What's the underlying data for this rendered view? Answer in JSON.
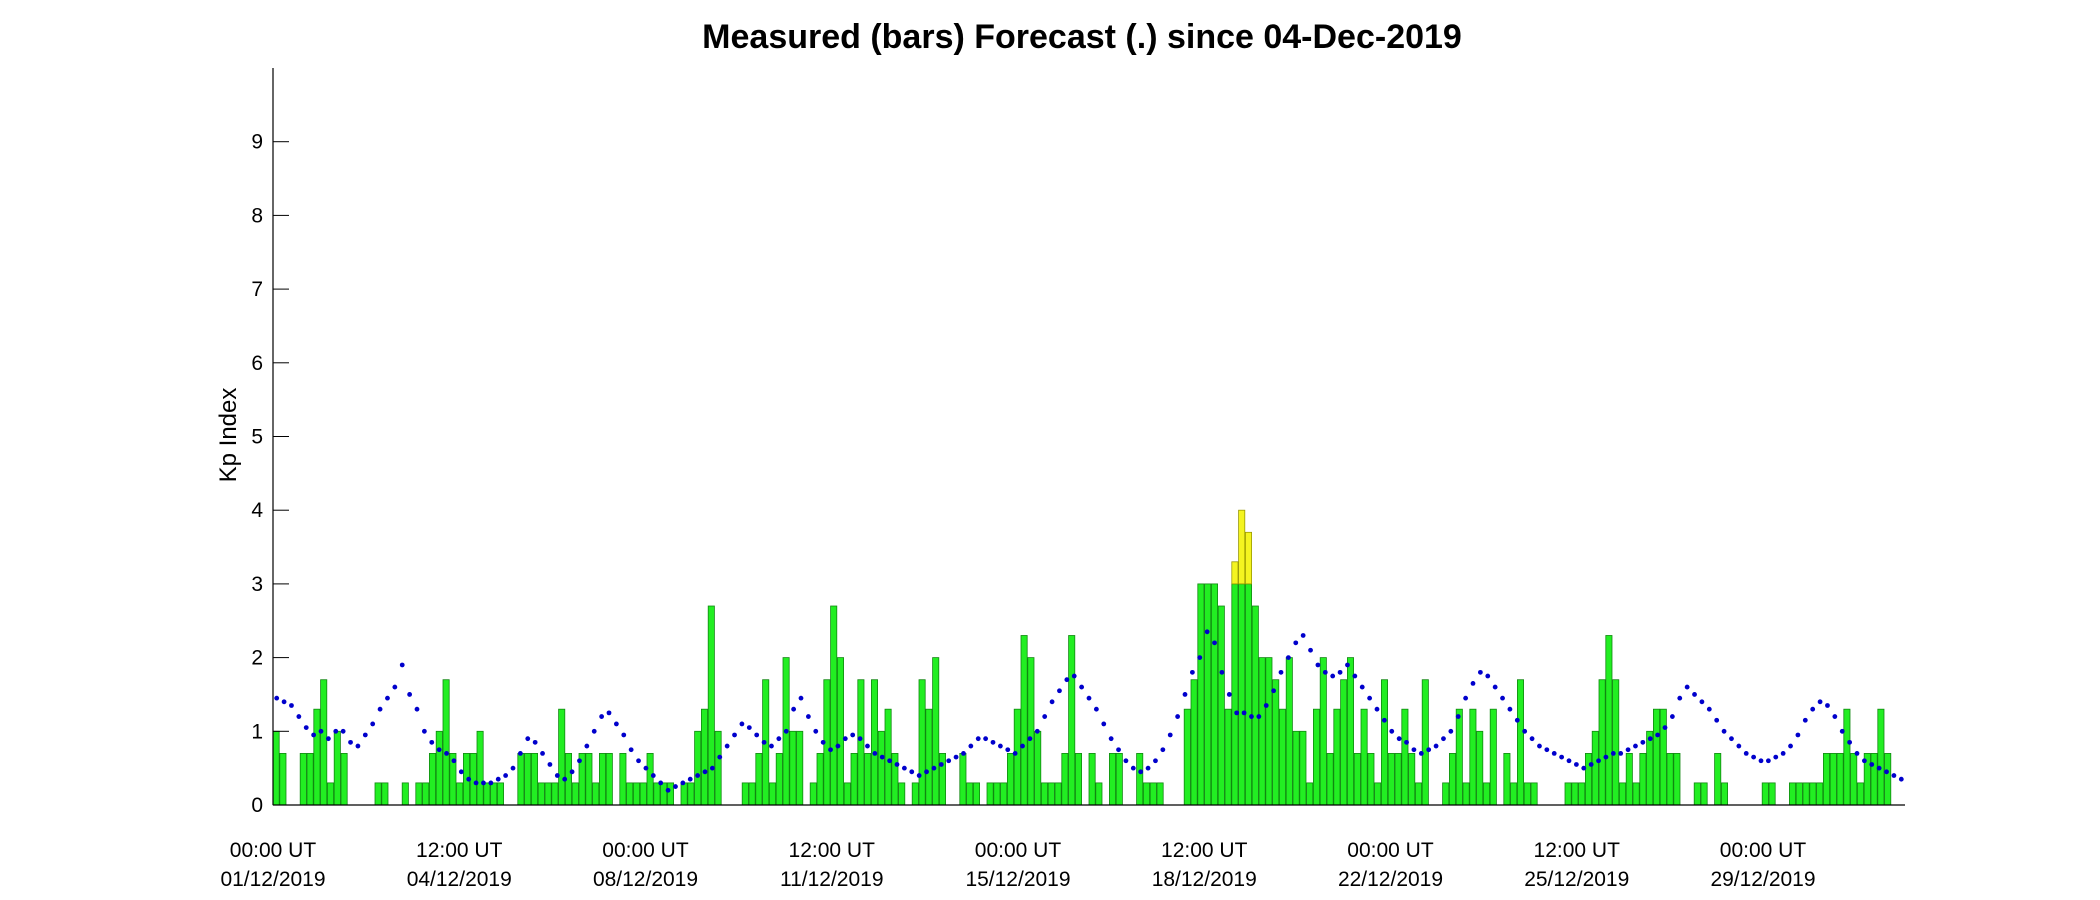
{
  "chart_data": {
    "type": "bar",
    "title": "Measured (bars) Forecast (.) since 04-Dec-2019",
    "ylabel": "Kp Index",
    "xlabel": "",
    "ylim": [
      0,
      10
    ],
    "yticks": [
      0,
      1,
      2,
      3,
      4,
      5,
      6,
      7,
      8,
      9
    ],
    "xlim": [
      "2019-12-01 00:00",
      "2019-12-31 00:00"
    ],
    "xticks": [
      {
        "line1": "00:00 UT",
        "line2": "01/12/2019"
      },
      {
        "line1": "12:00 UT",
        "line2": "04/12/2019"
      },
      {
        "line1": "00:00 UT",
        "line2": "08/12/2019"
      },
      {
        "line1": "12:00 UT",
        "line2": "11/12/2019"
      },
      {
        "line1": "00:00 UT",
        "line2": "15/12/2019"
      },
      {
        "line1": "12:00 UT",
        "line2": "18/12/2019"
      },
      {
        "line1": "00:00 UT",
        "line2": "22/12/2019"
      },
      {
        "line1": "12:00 UT",
        "line2": "25/12/2019"
      },
      {
        "line1": "00:00 UT",
        "line2": "29/12/2019"
      }
    ],
    "bar_interval_hours": 3,
    "colors": {
      "low_bar": "#22ee22",
      "low_bar_edge": "#118811",
      "high_bar": "#f4f420",
      "high_bar_edge": "#999900",
      "forecast_dot": "#0000cc"
    },
    "color_threshold": 3,
    "measured_kp": [
      1.0,
      0.7,
      0.0,
      0.0,
      0.7,
      0.7,
      1.3,
      1.7,
      0.3,
      1.0,
      0.7,
      0.0,
      0.0,
      0.0,
      0.0,
      0.3,
      0.3,
      0.0,
      0.0,
      0.3,
      0.0,
      0.3,
      0.3,
      0.7,
      1.0,
      1.7,
      0.7,
      0.3,
      0.7,
      0.7,
      1.0,
      0.3,
      0.3,
      0.3,
      0.0,
      0.0,
      0.7,
      0.7,
      0.7,
      0.3,
      0.3,
      0.3,
      1.3,
      0.7,
      0.3,
      0.7,
      0.7,
      0.3,
      0.7,
      0.7,
      0.0,
      0.7,
      0.3,
      0.3,
      0.3,
      0.7,
      0.3,
      0.3,
      0.3,
      0.0,
      0.3,
      0.3,
      1.0,
      1.3,
      2.7,
      1.0,
      0.0,
      0.0,
      0.0,
      0.3,
      0.3,
      0.7,
      1.7,
      0.3,
      0.7,
      2.0,
      1.0,
      1.0,
      0.0,
      0.3,
      0.7,
      1.7,
      2.7,
      2.0,
      0.3,
      0.7,
      1.7,
      0.7,
      1.7,
      1.0,
      1.3,
      0.7,
      0.3,
      0.0,
      0.3,
      1.7,
      1.3,
      2.0,
      0.7,
      0.0,
      0.0,
      0.7,
      0.3,
      0.3,
      0.0,
      0.3,
      0.3,
      0.3,
      0.7,
      1.3,
      2.3,
      2.0,
      1.0,
      0.3,
      0.3,
      0.3,
      0.7,
      2.3,
      0.7,
      0.0,
      0.7,
      0.3,
      0.0,
      0.7,
      0.7,
      0.0,
      0.0,
      0.7,
      0.3,
      0.3,
      0.3,
      0.0,
      0.0,
      0.0,
      1.3,
      1.7,
      3.0,
      3.0,
      3.0,
      2.7,
      1.3,
      3.3,
      4.0,
      3.7,
      2.7,
      2.0,
      2.0,
      1.7,
      1.3,
      2.0,
      1.0,
      1.0,
      0.3,
      1.3,
      2.0,
      0.7,
      1.3,
      1.7,
      2.0,
      0.7,
      1.3,
      0.7,
      0.3,
      1.7,
      0.7,
      0.7,
      1.3,
      0.7,
      0.3,
      1.7,
      0.0,
      0.0,
      0.3,
      0.7,
      1.3,
      0.3,
      1.3,
      1.0,
      0.3,
      1.3,
      0.0,
      0.7,
      0.3,
      1.7,
      0.3,
      0.3,
      0.0,
      0.0,
      0.0,
      0.0,
      0.3,
      0.3,
      0.3,
      0.7,
      1.0,
      1.7,
      2.3,
      1.7,
      0.3,
      0.7,
      0.3,
      0.7,
      1.0,
      1.3,
      1.3,
      0.7,
      0.7,
      0.0,
      0.0,
      0.3,
      0.3,
      0.0,
      0.7,
      0.3,
      0.0,
      0.0,
      0.0,
      0.0,
      0.0,
      0.3,
      0.3,
      0.0,
      0.0,
      0.3,
      0.3,
      0.3,
      0.3,
      0.3,
      0.7,
      0.7,
      0.7,
      1.3,
      0.7,
      0.3,
      0.7,
      0.7,
      1.3,
      0.7
    ],
    "forecast_kp": [
      1.45,
      1.4,
      1.35,
      1.2,
      1.05,
      0.95,
      1.0,
      0.9,
      1.0,
      1.0,
      0.85,
      0.8,
      0.95,
      1.1,
      1.3,
      1.45,
      1.6,
      1.9,
      1.5,
      1.3,
      1.0,
      0.85,
      0.75,
      0.7,
      0.6,
      0.45,
      0.35,
      0.3,
      0.3,
      0.3,
      0.35,
      0.4,
      0.5,
      0.7,
      0.9,
      0.85,
      0.7,
      0.55,
      0.4,
      0.35,
      0.45,
      0.6,
      0.8,
      1.0,
      1.2,
      1.25,
      1.1,
      0.95,
      0.75,
      0.6,
      0.5,
      0.4,
      0.3,
      0.2,
      0.25,
      0.3,
      0.35,
      0.4,
      0.45,
      0.5,
      0.65,
      0.8,
      0.95,
      1.1,
      1.05,
      0.95,
      0.85,
      0.8,
      0.9,
      1.0,
      1.3,
      1.45,
      1.2,
      1.0,
      0.85,
      0.75,
      0.8,
      0.9,
      0.95,
      0.9,
      0.8,
      0.7,
      0.65,
      0.6,
      0.55,
      0.5,
      0.45,
      0.4,
      0.45,
      0.5,
      0.55,
      0.6,
      0.65,
      0.7,
      0.8,
      0.9,
      0.9,
      0.85,
      0.8,
      0.75,
      0.7,
      0.8,
      0.9,
      1.0,
      1.2,
      1.4,
      1.55,
      1.7,
      1.75,
      1.6,
      1.45,
      1.3,
      1.1,
      0.9,
      0.75,
      0.6,
      0.5,
      0.45,
      0.5,
      0.6,
      0.75,
      0.95,
      1.2,
      1.5,
      1.8,
      2.0,
      2.35,
      2.2,
      1.8,
      1.5,
      1.25,
      1.25,
      1.2,
      1.2,
      1.35,
      1.55,
      1.8,
      2.0,
      2.2,
      2.3,
      2.1,
      1.9,
      1.8,
      1.75,
      1.8,
      1.9,
      1.75,
      1.6,
      1.45,
      1.3,
      1.15,
      1.0,
      0.9,
      0.85,
      0.75,
      0.7,
      0.75,
      0.8,
      0.9,
      1.0,
      1.2,
      1.45,
      1.65,
      1.8,
      1.75,
      1.6,
      1.45,
      1.3,
      1.15,
      1.0,
      0.9,
      0.8,
      0.75,
      0.7,
      0.65,
      0.6,
      0.55,
      0.5,
      0.55,
      0.6,
      0.65,
      0.7,
      0.7,
      0.75,
      0.8,
      0.85,
      0.9,
      0.95,
      1.05,
      1.2,
      1.45,
      1.6,
      1.5,
      1.4,
      1.3,
      1.15,
      1.0,
      0.9,
      0.8,
      0.7,
      0.65,
      0.6,
      0.6,
      0.65,
      0.7,
      0.8,
      0.95,
      1.15,
      1.3,
      1.4,
      1.35,
      1.2,
      1.0,
      0.85,
      0.7,
      0.6,
      0.55,
      0.5,
      0.45,
      0.4,
      0.35
    ]
  }
}
